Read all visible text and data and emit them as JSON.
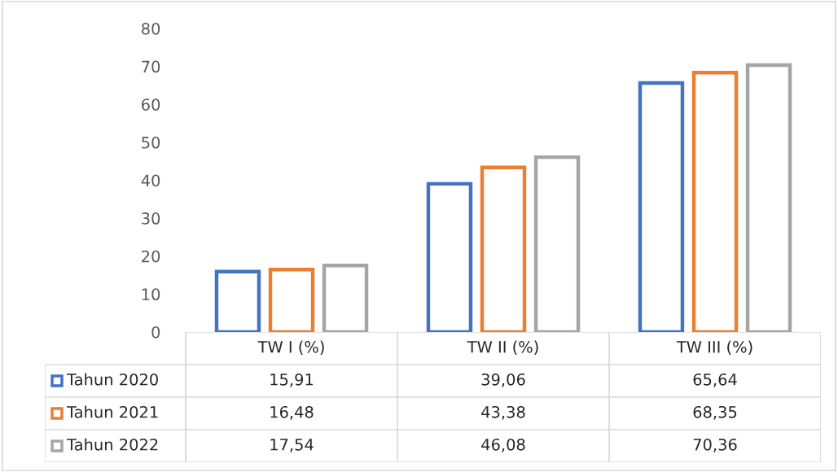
{
  "chart_data": {
    "type": "bar",
    "categories": [
      "TW I (%)",
      "TW II (%)",
      "TW III (%)"
    ],
    "series": [
      {
        "name": "Tahun 2020",
        "color": "#4472c4",
        "values": [
          15.91,
          39.06,
          65.64
        ],
        "value_labels": [
          "15,91",
          "39,06",
          "65,64"
        ]
      },
      {
        "name": "Tahun 2021",
        "color": "#ed7d31",
        "values": [
          16.48,
          43.38,
          68.35
        ],
        "value_labels": [
          "16,48",
          "43,38",
          "68,35"
        ]
      },
      {
        "name": "Tahun 2022",
        "color": "#a5a5a5",
        "values": [
          17.54,
          46.08,
          70.36
        ],
        "value_labels": [
          "17,54",
          "46,08",
          "70,36"
        ]
      }
    ],
    "ylim": [
      0,
      80
    ],
    "yticks": [
      0,
      10,
      20,
      30,
      40,
      50,
      60,
      70,
      80
    ],
    "grid": false,
    "legend": "bottom"
  }
}
